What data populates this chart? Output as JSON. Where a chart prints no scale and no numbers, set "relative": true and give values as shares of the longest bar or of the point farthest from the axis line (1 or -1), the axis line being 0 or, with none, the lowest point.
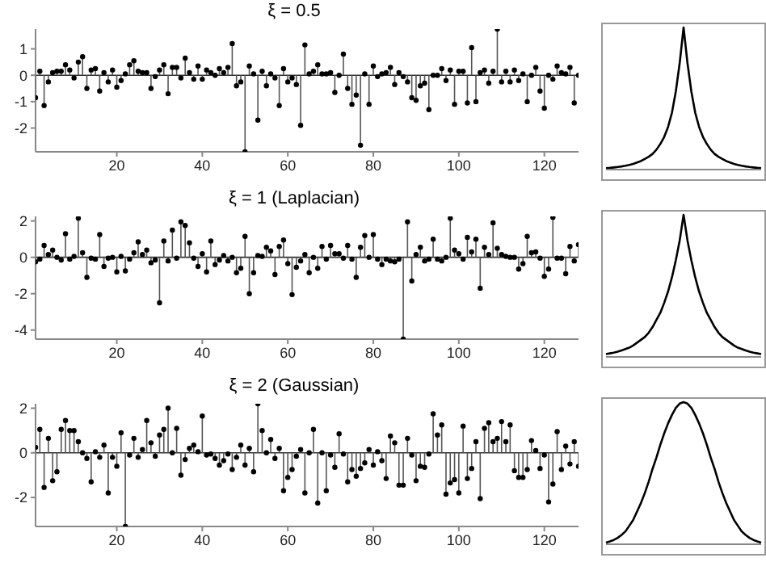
{
  "chart_data": [
    {
      "type": "lollipop",
      "title": "ξ = 0.5",
      "x": [
        1,
        2,
        3,
        4,
        5,
        6,
        7,
        8,
        9,
        10,
        11,
        12,
        13,
        14,
        15,
        16,
        17,
        18,
        19,
        20,
        21,
        22,
        23,
        24,
        25,
        26,
        27,
        28,
        29,
        30,
        31,
        32,
        33,
        34,
        35,
        36,
        37,
        38,
        39,
        40,
        41,
        42,
        43,
        44,
        45,
        46,
        47,
        48,
        49,
        50,
        51,
        52,
        53,
        54,
        55,
        56,
        57,
        58,
        59,
        60,
        61,
        62,
        63,
        64,
        65,
        66,
        67,
        68,
        69,
        70,
        71,
        72,
        73,
        74,
        75,
        76,
        77,
        78,
        79,
        80,
        81,
        82,
        83,
        84,
        85,
        86,
        87,
        88,
        89,
        90,
        91,
        92,
        93,
        94,
        95,
        96,
        97,
        98,
        99,
        100,
        101,
        102,
        103,
        104,
        105,
        106,
        107,
        108,
        109,
        110,
        111,
        112,
        113,
        114,
        115,
        116,
        117,
        118,
        119,
        120,
        121,
        122,
        123,
        124,
        125,
        126,
        127,
        128
      ],
      "xlim": [
        1,
        128
      ],
      "xticks": [
        20,
        40,
        60,
        80,
        100,
        120
      ],
      "ylim": [
        -2.9,
        1.75
      ],
      "yticks": [
        -2,
        -1,
        0,
        1
      ],
      "marker": "circle",
      "grid": false,
      "ref_lines": [
        {
          "axis": "y",
          "value": 0
        }
      ],
      "series": [
        {
          "color": "#000000",
          "values": [
            -0.85,
            0.15,
            -1.15,
            -0.25,
            0.1,
            0.15,
            0.15,
            0.4,
            0.2,
            -0.1,
            0.5,
            0.7,
            -0.5,
            0.2,
            0.25,
            -0.6,
            0.1,
            -0.25,
            0.2,
            -0.45,
            -0.2,
            0.05,
            0.4,
            0.55,
            0.15,
            0.1,
            0.1,
            -0.5,
            -0.05,
            0.2,
            0.4,
            -0.7,
            0.3,
            0.3,
            -0.1,
            0.65,
            0.1,
            -0.15,
            0.35,
            -0.15,
            0.2,
            0.1,
            0,
            0.25,
            0.1,
            0.3,
            1.2,
            -0.4,
            -0.25,
            -2.9,
            0.35,
            0.05,
            -1.7,
            0.15,
            -0.4,
            0.05,
            -0.1,
            -1.15,
            0.25,
            -0.25,
            -0.1,
            -0.35,
            -1.9,
            1.15,
            0.05,
            0.15,
            0.4,
            0.05,
            0.05,
            0.1,
            -0.65,
            0,
            0.8,
            -0.5,
            -1.1,
            -0.75,
            -2.65,
            0.05,
            -1.1,
            0.35,
            -0.05,
            0.05,
            0.1,
            0.3,
            -0.35,
            0.1,
            -0.05,
            -0.25,
            -0.85,
            -0.95,
            -0.4,
            -0.3,
            -1.3,
            0,
            0,
            0.25,
            -0.2,
            0.2,
            -1.1,
            0.15,
            0.15,
            -1.05,
            1.05,
            -1,
            0.1,
            0.2,
            -0.3,
            0.15,
            1.75,
            -0.25,
            0.15,
            -0.25,
            0.2,
            -0.2,
            0.05,
            -1,
            0,
            0.3,
            -0.6,
            -1.25,
            0,
            -0.15,
            0.35,
            0.1,
            0.05,
            0.3,
            -1.05,
            0
          ]
        }
      ]
    },
    {
      "type": "line",
      "relative": true,
      "grid": false,
      "marker": "none",
      "categories": [
        null,
        null,
        null,
        null,
        null,
        null,
        null,
        null,
        null,
        null,
        null,
        null,
        null,
        null,
        null,
        null,
        null,
        null,
        null,
        null,
        null,
        null,
        null,
        null,
        null,
        null,
        null,
        null,
        null,
        null,
        null,
        null,
        null,
        null,
        null,
        null,
        null,
        null,
        null,
        null,
        null
      ],
      "series": [
        {
          "color": "#000000",
          "values": [
            0.01,
            0.012,
            0.015,
            0.018,
            0.022,
            0.027,
            0.033,
            0.04,
            0.05,
            0.06,
            0.075,
            0.09,
            0.11,
            0.14,
            0.18,
            0.23,
            0.3,
            0.4,
            0.55,
            0.75,
            1,
            0.75,
            0.55,
            0.4,
            0.3,
            0.23,
            0.18,
            0.14,
            0.11,
            0.09,
            0.075,
            0.06,
            0.05,
            0.04,
            0.033,
            0.027,
            0.022,
            0.018,
            0.015,
            0.012,
            0.01
          ]
        }
      ]
    },
    {
      "type": "lollipop",
      "title": "ξ = 1 (Laplacian)",
      "x": [
        1,
        2,
        3,
        4,
        5,
        6,
        7,
        8,
        9,
        10,
        11,
        12,
        13,
        14,
        15,
        16,
        17,
        18,
        19,
        20,
        21,
        22,
        23,
        24,
        25,
        26,
        27,
        28,
        29,
        30,
        31,
        32,
        33,
        34,
        35,
        36,
        37,
        38,
        39,
        40,
        41,
        42,
        43,
        44,
        45,
        46,
        47,
        48,
        49,
        50,
        51,
        52,
        53,
        54,
        55,
        56,
        57,
        58,
        59,
        60,
        61,
        62,
        63,
        64,
        65,
        66,
        67,
        68,
        69,
        70,
        71,
        72,
        73,
        74,
        75,
        76,
        77,
        78,
        79,
        80,
        81,
        82,
        83,
        84,
        85,
        86,
        87,
        88,
        89,
        90,
        91,
        92,
        93,
        94,
        95,
        96,
        97,
        98,
        99,
        100,
        101,
        102,
        103,
        104,
        105,
        106,
        107,
        108,
        109,
        110,
        111,
        112,
        113,
        114,
        115,
        116,
        117,
        118,
        119,
        120,
        121,
        122,
        123,
        124,
        125,
        126,
        127,
        128
      ],
      "xlim": [
        1,
        128
      ],
      "xticks": [
        20,
        40,
        60,
        80,
        100,
        120
      ],
      "ylim": [
        -4.5,
        2.25
      ],
      "yticks": [
        -4,
        -2,
        0,
        2
      ],
      "marker": "circle",
      "grid": false,
      "ref_lines": [
        {
          "axis": "y",
          "value": 0
        }
      ],
      "series": [
        {
          "color": "#000000",
          "values": [
            -0.25,
            -0.1,
            0.65,
            0.15,
            0.4,
            0,
            -0.15,
            1.3,
            -0.1,
            0.05,
            2.15,
            0.25,
            -1.1,
            -0.05,
            -0.1,
            1.25,
            -0.5,
            -0.05,
            0,
            -0.8,
            0.05,
            -0.75,
            -0.1,
            0.25,
            0.85,
            0.15,
            0.4,
            -0.3,
            -0.15,
            -2.5,
            0.9,
            -0.2,
            1.5,
            -0.05,
            1.95,
            1.75,
            0.8,
            -0.05,
            -0.5,
            0.2,
            -0.8,
            0.9,
            -0.4,
            -0.15,
            0.1,
            -0.2,
            0,
            -0.85,
            -0.6,
            1.15,
            -2,
            -0.85,
            0.1,
            0.05,
            0.55,
            0.35,
            -0.95,
            0.6,
            0.95,
            -0.35,
            -2.05,
            -0.55,
            -0.2,
            0.15,
            -0.85,
            0,
            -0.6,
            0.6,
            -0.1,
            0.65,
            0.2,
            0.2,
            -0.05,
            0.65,
            -0.1,
            -1.1,
            0.55,
            1.2,
            0,
            1.25,
            -0.1,
            -0.4,
            -0.1,
            -0.2,
            -0.25,
            -0.1,
            -4.5,
            1.95,
            -1.3,
            0.15,
            0.55,
            -0.2,
            -0.1,
            1,
            -0.1,
            -0.2,
            0,
            2.15,
            0.4,
            0.2,
            -0.1,
            1.1,
            0.3,
            1,
            -1.7,
            0.55,
            0.15,
            1.9,
            0.5,
            0.15,
            0.05,
            0,
            0,
            -0.65,
            -0.35,
            1.15,
            0.25,
            0.3,
            -0.05,
            -1.05,
            -0.65,
            2.2,
            -0.05,
            -0.05,
            -0.9,
            0.6,
            -0.2,
            0.7
          ]
        }
      ]
    },
    {
      "type": "line",
      "relative": true,
      "grid": false,
      "marker": "none",
      "categories": [
        null,
        null,
        null,
        null,
        null,
        null,
        null,
        null,
        null,
        null,
        null,
        null,
        null,
        null,
        null,
        null,
        null,
        null,
        null,
        null,
        null,
        null,
        null,
        null,
        null,
        null,
        null,
        null,
        null,
        null,
        null,
        null,
        null,
        null,
        null,
        null,
        null,
        null,
        null,
        null,
        null
      ],
      "series": [
        {
          "color": "#000000",
          "values": [
            0.02,
            0.025,
            0.03,
            0.037,
            0.045,
            0.055,
            0.065,
            0.08,
            0.1,
            0.12,
            0.14,
            0.17,
            0.21,
            0.26,
            0.31,
            0.38,
            0.46,
            0.56,
            0.68,
            0.82,
            1,
            0.82,
            0.68,
            0.56,
            0.46,
            0.38,
            0.31,
            0.26,
            0.21,
            0.17,
            0.14,
            0.12,
            0.1,
            0.08,
            0.065,
            0.055,
            0.045,
            0.037,
            0.03,
            0.025,
            0.02
          ]
        }
      ]
    },
    {
      "type": "lollipop",
      "title": "ξ = 2 (Gaussian)",
      "x": [
        1,
        2,
        3,
        4,
        5,
        6,
        7,
        8,
        9,
        10,
        11,
        12,
        13,
        14,
        15,
        16,
        17,
        18,
        19,
        20,
        21,
        22,
        23,
        24,
        25,
        26,
        27,
        28,
        29,
        30,
        31,
        32,
        33,
        34,
        35,
        36,
        37,
        38,
        39,
        40,
        41,
        42,
        43,
        44,
        45,
        46,
        47,
        48,
        49,
        50,
        51,
        52,
        53,
        54,
        55,
        56,
        57,
        58,
        59,
        60,
        61,
        62,
        63,
        64,
        65,
        66,
        67,
        68,
        69,
        70,
        71,
        72,
        73,
        74,
        75,
        76,
        77,
        78,
        79,
        80,
        81,
        82,
        83,
        84,
        85,
        86,
        87,
        88,
        89,
        90,
        91,
        92,
        93,
        94,
        95,
        96,
        97,
        98,
        99,
        100,
        101,
        102,
        103,
        104,
        105,
        106,
        107,
        108,
        109,
        110,
        111,
        112,
        113,
        114,
        115,
        116,
        117,
        118,
        119,
        120,
        121,
        122,
        123,
        124,
        125,
        126,
        127,
        128
      ],
      "xlim": [
        1,
        128
      ],
      "xticks": [
        20,
        40,
        60,
        80,
        100,
        120
      ],
      "ylim": [
        -3.3,
        2.2
      ],
      "yticks": [
        -2,
        0,
        2
      ],
      "marker": "circle",
      "grid": false,
      "ref_lines": [
        {
          "axis": "y",
          "value": 0
        }
      ],
      "series": [
        {
          "color": "#000000",
          "values": [
            0.25,
            1.05,
            -1.55,
            0.65,
            -1.25,
            -0.85,
            1.05,
            1.45,
            1,
            1,
            0.5,
            0,
            -0.25,
            -1.3,
            0.05,
            -0.2,
            0.35,
            -1.8,
            -0.2,
            -0.6,
            0.9,
            -3.3,
            -0.1,
            0.65,
            -0.2,
            0.15,
            1.45,
            0.45,
            -0.15,
            0.8,
            1.05,
            2,
            0,
            1.1,
            -1,
            -0.3,
            0.2,
            0.35,
            0.05,
            1.65,
            -0.1,
            -0.05,
            -0.25,
            -0.55,
            -0.35,
            -0.05,
            -0.75,
            -0.2,
            0.35,
            -0.55,
            0.2,
            -0.85,
            2.2,
            1,
            0,
            0.6,
            -0.25,
            0.2,
            -1.7,
            -1.1,
            -0.75,
            -0.15,
            0.15,
            -1.8,
            0,
            1.05,
            -2.25,
            0,
            -1.7,
            -0.1,
            -0.65,
            0.85,
            -0.05,
            -1.3,
            -0.75,
            -1.05,
            -0.7,
            -0.45,
            0.15,
            -0.55,
            0.05,
            -0.35,
            -1.15,
            0.75,
            0.45,
            -1.45,
            -1.45,
            0.65,
            -0.1,
            -1.25,
            -0.6,
            -0.65,
            -0.05,
            1.75,
            0.8,
            1.25,
            -1.85,
            -1.35,
            -1.2,
            -1.8,
            1.2,
            -1.15,
            -0.7,
            0.5,
            -2.05,
            1.1,
            1.35,
            0.5,
            0.65,
            1.4,
            0.5,
            1.25,
            -0.8,
            -1.1,
            -1.1,
            -0.75,
            0.55,
            0.1,
            -0.7,
            -0.1,
            -2.2,
            -1.4,
            0.95,
            -0.75,
            0.3,
            -0.5,
            0.5,
            -0.6
          ]
        }
      ]
    },
    {
      "type": "line",
      "relative": true,
      "grid": false,
      "marker": "none",
      "categories": [
        null,
        null,
        null,
        null,
        null,
        null,
        null,
        null,
        null,
        null,
        null,
        null,
        null,
        null,
        null,
        null,
        null,
        null,
        null,
        null,
        null,
        null,
        null,
        null,
        null,
        null,
        null,
        null,
        null,
        null,
        null,
        null,
        null,
        null,
        null,
        null,
        null,
        null,
        null,
        null,
        null
      ],
      "series": [
        {
          "color": "#000000",
          "values": [
            0.012,
            0.02,
            0.03,
            0.045,
            0.065,
            0.09,
            0.13,
            0.17,
            0.23,
            0.29,
            0.36,
            0.44,
            0.53,
            0.61,
            0.7,
            0.78,
            0.85,
            0.91,
            0.96,
            0.99,
            1,
            0.99,
            0.96,
            0.91,
            0.85,
            0.78,
            0.7,
            0.61,
            0.53,
            0.44,
            0.36,
            0.29,
            0.23,
            0.17,
            0.13,
            0.09,
            0.065,
            0.045,
            0.03,
            0.02,
            0.012
          ]
        }
      ]
    }
  ]
}
